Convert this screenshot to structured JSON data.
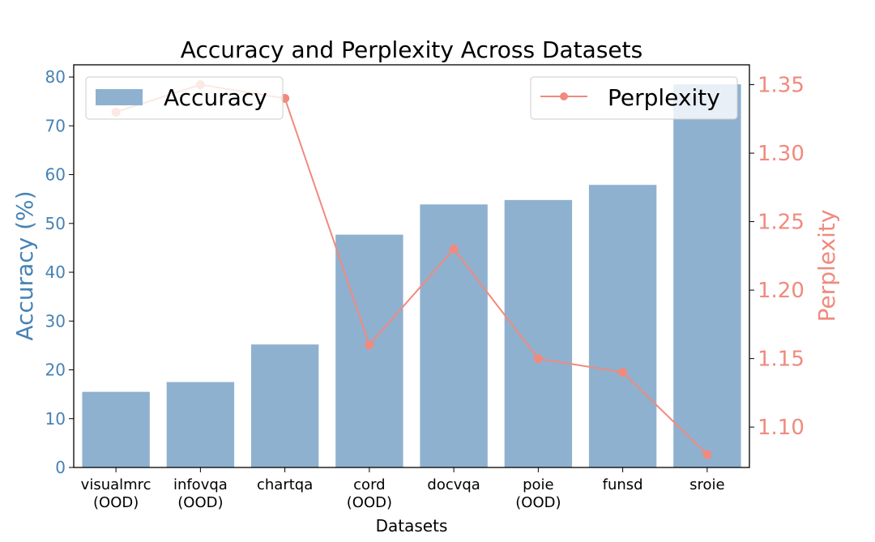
{
  "chart_data": {
    "type": "bar+line",
    "title": "Accuracy and Perplexity Across Datasets",
    "xlabel": "Datasets",
    "ylabel_left": "Accuracy (%)",
    "ylabel_right": "Perplexity",
    "categories": [
      [
        "visualmrc",
        "(OOD)"
      ],
      [
        "infovqa",
        "(OOD)"
      ],
      [
        "chartqa"
      ],
      [
        "cord",
        "(OOD)"
      ],
      [
        "docvqa"
      ],
      [
        "poie",
        "(OOD)"
      ],
      [
        "funsd"
      ],
      [
        "sroie"
      ]
    ],
    "series": [
      {
        "name": "Accuracy",
        "type": "bar",
        "axis": "left",
        "color": "#8fb1d0",
        "values": [
          15.5,
          17.5,
          25.2,
          47.7,
          53.9,
          54.8,
          57.9,
          78.5
        ]
      },
      {
        "name": "Perplexity",
        "type": "line",
        "axis": "right",
        "color": "#f08a7e",
        "values": [
          1.33,
          1.35,
          1.34,
          1.16,
          1.23,
          1.15,
          1.14,
          1.08
        ]
      }
    ],
    "ylim_left": [
      0,
      82.5
    ],
    "yticks_left": [
      0,
      10,
      20,
      30,
      40,
      50,
      60,
      70,
      80
    ],
    "ylim_right": [
      1.0705,
      1.3645
    ],
    "yticks_right": [
      "1.10",
      "1.15",
      "1.20",
      "1.25",
      "1.30",
      "1.35"
    ],
    "left_axis_color": "#4682b4",
    "right_axis_color": "#f08a7e",
    "grid": false,
    "legend_left_placement": "top-left",
    "legend_right_placement": "top-right"
  }
}
